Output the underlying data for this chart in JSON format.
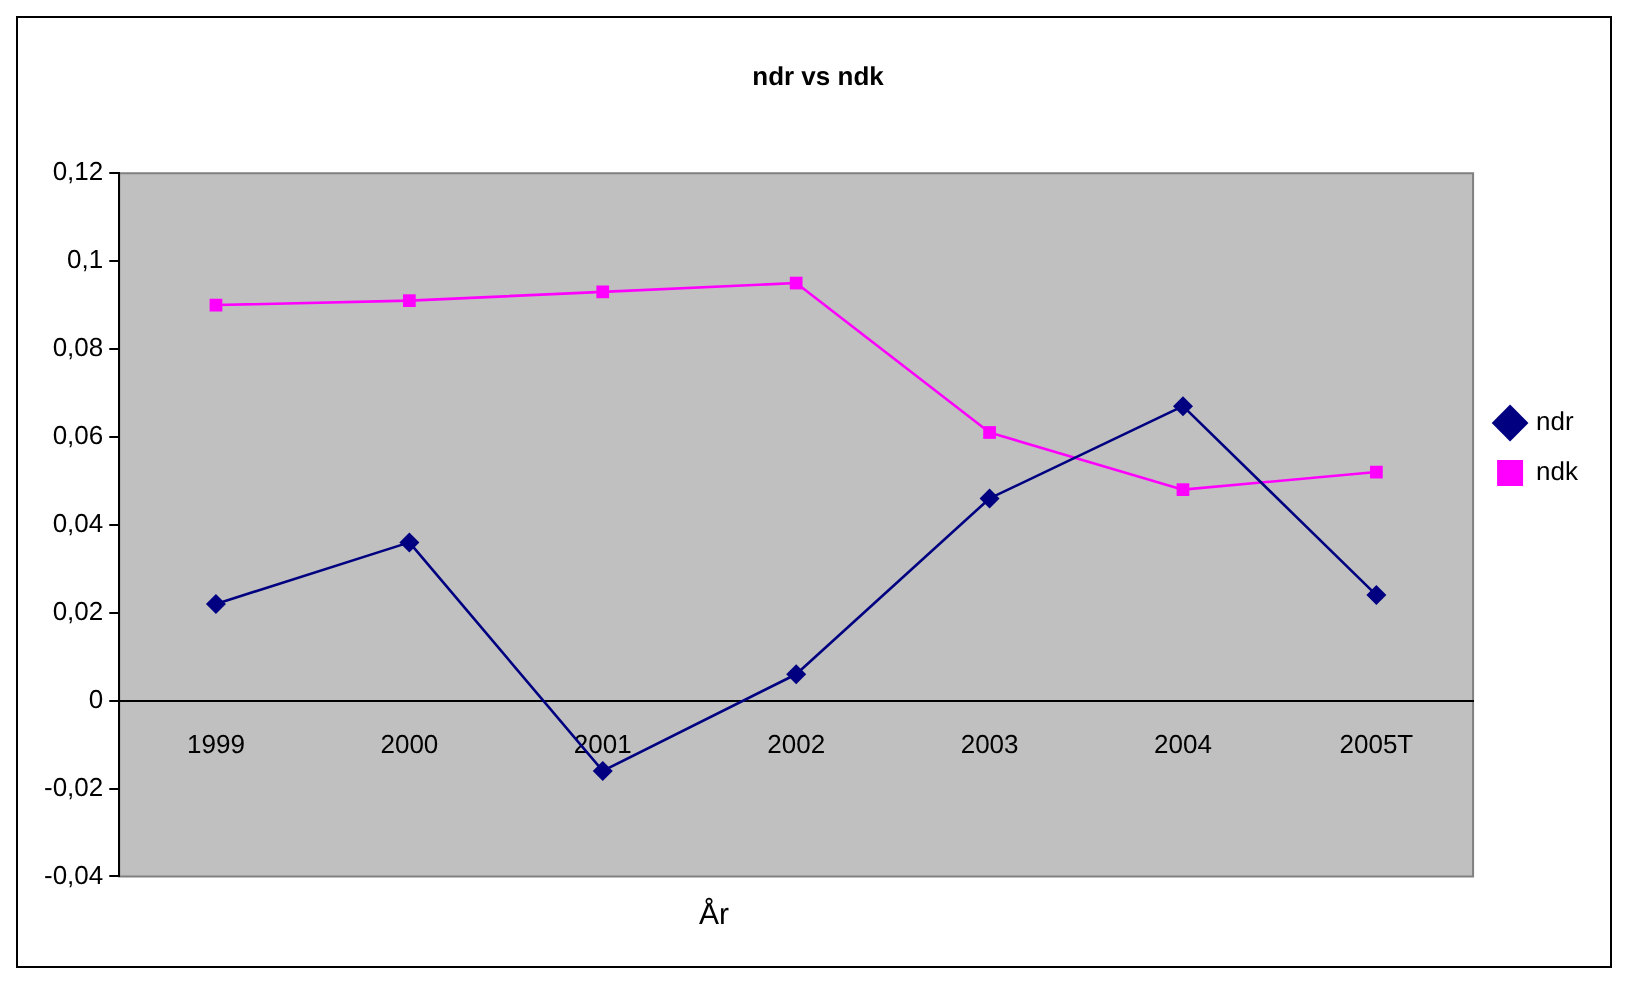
{
  "chart_data": {
    "type": "line",
    "title": "ndr vs ndk",
    "xlabel": "År",
    "categories": [
      "1999",
      "2000",
      "2001",
      "2002",
      "2003",
      "2004",
      "2005T"
    ],
    "series": [
      {
        "name": "ndr",
        "color": "#000080",
        "marker": "diamond",
        "values": [
          0.022,
          0.036,
          -0.016,
          0.006,
          0.046,
          0.067,
          0.024
        ]
      },
      {
        "name": "ndk",
        "color": "#ff00ff",
        "marker": "square",
        "values": [
          0.09,
          0.091,
          0.093,
          0.095,
          0.061,
          0.048,
          0.052
        ]
      }
    ],
    "ylim": [
      -0.04,
      0.12
    ],
    "yticks": [
      {
        "value": -0.04,
        "label": "-0,04"
      },
      {
        "value": -0.02,
        "label": "-0,02"
      },
      0,
      {
        "value": 0.02,
        "label": "0,02"
      },
      {
        "value": 0.04,
        "label": "0,04"
      },
      {
        "value": 0.06,
        "label": "0,06"
      },
      {
        "value": 0.08,
        "label": "0,08"
      },
      {
        "value": 0.1,
        "label": "0,1"
      },
      {
        "value": 0.12,
        "label": "0,12"
      }
    ],
    "grid": false,
    "legend": "right",
    "line_style": "solid"
  }
}
